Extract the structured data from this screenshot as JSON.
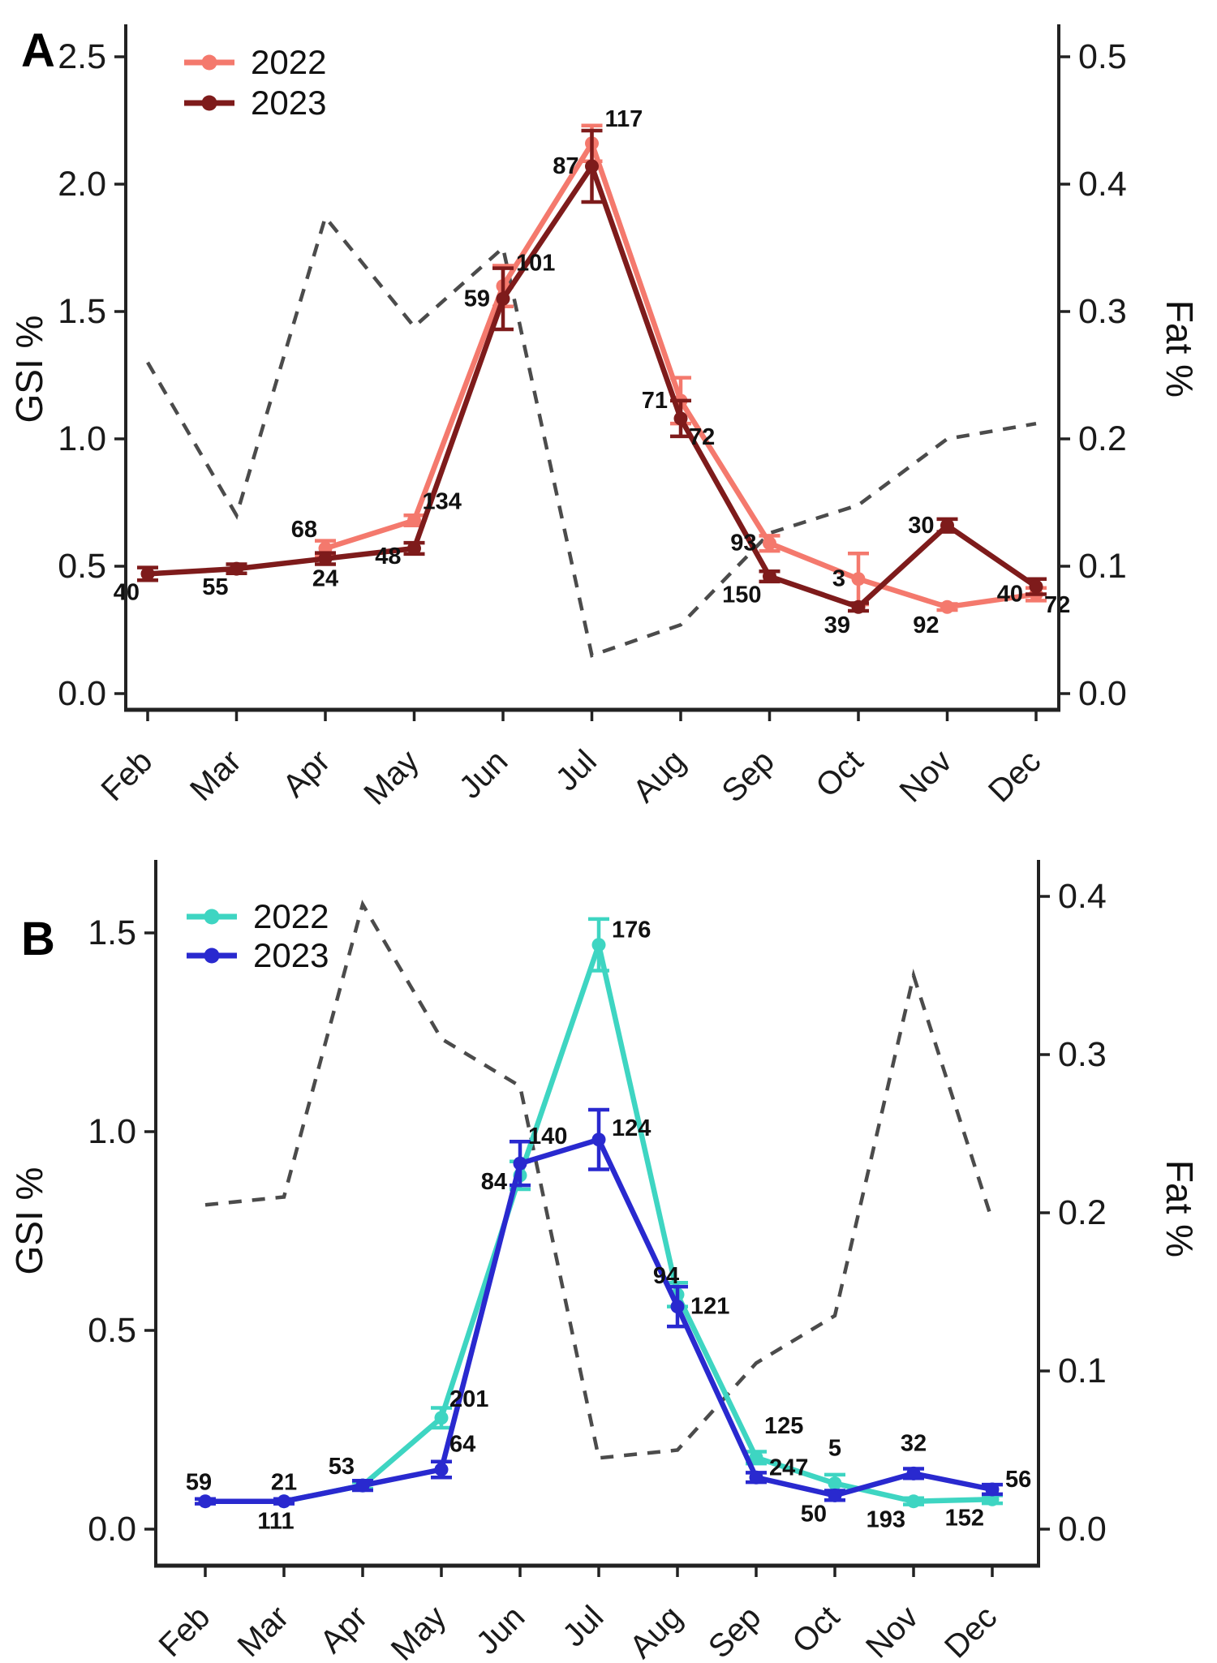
{
  "figure": {
    "background": "#ffffff",
    "text_color": "#000000",
    "axis_color": "#222222"
  },
  "chart_data": [
    {
      "type": "line",
      "panel_label": "A",
      "months": [
        "Feb",
        "Mar",
        "Apr",
        "May",
        "Jun",
        "Jul",
        "Aug",
        "Sep",
        "Oct",
        "Nov",
        "Dec"
      ],
      "y_left": {
        "label": "GSI %",
        "ticks": [
          "0.0",
          "0.5",
          "1.0",
          "1.5",
          "2.0",
          "2.5"
        ],
        "min": 0,
        "max": 2.5
      },
      "y_right": {
        "label": "Fat %",
        "ticks": [
          "0.0",
          "0.1",
          "0.2",
          "0.3",
          "0.4",
          "0.5"
        ],
        "min": 0,
        "max": 0.5
      },
      "legend": [
        {
          "label": "2022",
          "color": "#F4796D"
        },
        {
          "label": "2023",
          "color": "#7E1B1B"
        }
      ],
      "series": [
        {
          "name": "2022",
          "color": "#F4796D",
          "points": [
            {
              "month": "Apr",
              "gsi": 0.57,
              "err": 0.03,
              "n": "68",
              "pos": "above-left"
            },
            {
              "month": "May",
              "gsi": 0.68,
              "err": 0.02,
              "n": "134",
              "pos": "above-right"
            },
            {
              "month": "Jun",
              "gsi": 1.6,
              "err": 0.08,
              "n": "101",
              "pos": "right",
              "dy": -28
            },
            {
              "month": "Jul",
              "gsi": 2.16,
              "err": 0.07,
              "n": "117",
              "pos": "right",
              "dy": -30
            },
            {
              "month": "Aug",
              "gsi": 1.15,
              "err": 0.09,
              "n": "71",
              "pos": "left"
            },
            {
              "month": "Sep",
              "gsi": 0.59,
              "err": 0.03,
              "n": "93",
              "pos": "left"
            },
            {
              "month": "Oct",
              "gsi": 0.45,
              "err": 0.1,
              "n": "3",
              "pos": "left"
            },
            {
              "month": "Nov",
              "gsi": 0.34,
              "err": 0.012,
              "n": "92",
              "pos": "below-left"
            },
            {
              "month": "Dec",
              "gsi": 0.39,
              "err": 0.025,
              "n": "40",
              "pos": "left"
            }
          ]
        },
        {
          "name": "2023",
          "color": "#7E1B1B",
          "points": [
            {
              "month": "Feb",
              "gsi": 0.47,
              "err": 0.025,
              "n": "40",
              "pos": "below-left"
            },
            {
              "month": "Mar",
              "gsi": 0.49,
              "err": 0.018,
              "n": "55",
              "pos": "below-left"
            },
            {
              "month": "Apr",
              "gsi": 0.53,
              "err": 0.022,
              "n": "24",
              "pos": "below"
            },
            {
              "month": "May",
              "gsi": 0.57,
              "err": 0.022,
              "n": "48",
              "pos": "left",
              "dy": 10
            },
            {
              "month": "Jun",
              "gsi": 1.55,
              "err": 0.12,
              "n": "59",
              "pos": "left"
            },
            {
              "month": "Jul",
              "gsi": 2.07,
              "err": 0.14,
              "n": "87",
              "pos": "left"
            },
            {
              "month": "Aug",
              "gsi": 1.08,
              "err": 0.07,
              "n": "72",
              "pos": "below-right"
            },
            {
              "month": "Sep",
              "gsi": 0.46,
              "err": 0.02,
              "n": "150",
              "pos": "below-left"
            },
            {
              "month": "Oct",
              "gsi": 0.34,
              "err": 0.015,
              "n": "39",
              "pos": "below-left"
            },
            {
              "month": "Nov",
              "gsi": 0.66,
              "err": 0.025,
              "n": "30",
              "pos": "left"
            },
            {
              "month": "Dec",
              "gsi": 0.42,
              "err": 0.03,
              "n": "72",
              "pos": "below-right"
            }
          ]
        }
      ],
      "fat_series": {
        "name": "Fat %",
        "style": "dashed",
        "color": "#4B4B4B",
        "values": [
          0.26,
          0.14,
          0.374,
          0.288,
          0.35,
          0.03,
          0.054,
          0.126,
          0.148,
          0.2,
          0.212
        ]
      }
    },
    {
      "type": "line",
      "panel_label": "B",
      "months": [
        "Feb",
        "Mar",
        "Apr",
        "May",
        "Jun",
        "Jul",
        "Aug",
        "Sep",
        "Oct",
        "Nov",
        "Dec"
      ],
      "y_left": {
        "label": "GSI %",
        "ticks": [
          "0.0",
          "0.5",
          "1.0",
          "1.5"
        ],
        "min": 0,
        "max": 1.5
      },
      "y_right": {
        "label": "Fat %",
        "ticks": [
          "0.0",
          "0.1",
          "0.2",
          "0.3",
          "0.4"
        ],
        "min": 0,
        "max": 0.4
      },
      "legend": [
        {
          "label": "2022",
          "color": "#3ED5C2"
        },
        {
          "label": "2023",
          "color": "#2929CF"
        }
      ],
      "series": [
        {
          "name": "2022",
          "color": "#3ED5C2",
          "points": [
            {
              "month": "Mar",
              "gsi": 0.07,
              "err": 0.005,
              "n": "21",
              "pos": "above"
            },
            {
              "month": "Apr",
              "gsi": 0.11,
              "err": 0.008,
              "n": null
            },
            {
              "month": "May",
              "gsi": 0.28,
              "err": 0.025,
              "n": "201",
              "pos": "above-right"
            },
            {
              "month": "Jun",
              "gsi": 0.89,
              "err": 0.035,
              "n": "84",
              "pos": "left",
              "dy": 8
            },
            {
              "month": "Jul",
              "gsi": 1.47,
              "err": 0.065,
              "n": "176",
              "pos": "right",
              "dy": -18
            },
            {
              "month": "Aug",
              "gsi": 0.59,
              "err": 0.03,
              "n": "94",
              "pos": "above",
              "dx": -14
            },
            {
              "month": "Sep",
              "gsi": 0.18,
              "err": 0.015,
              "n": "125",
              "pos": "above-right",
              "dy": -16
            },
            {
              "month": "Oct",
              "gsi": 0.115,
              "err": 0.022,
              "n": "5",
              "pos": "above",
              "dy": -20
            },
            {
              "month": "Nov",
              "gsi": 0.07,
              "err": 0.008,
              "n": "193",
              "pos": "below-left"
            },
            {
              "month": "Dec",
              "gsi": 0.075,
              "err": 0.01,
              "n": "152",
              "pos": "below-left"
            }
          ]
        },
        {
          "name": "2023",
          "color": "#2929CF",
          "points": [
            {
              "month": "Feb",
              "gsi": 0.07,
              "err": 0.006,
              "n": "59",
              "pos": "above",
              "dx": -8
            },
            {
              "month": "Mar",
              "gsi": 0.07,
              "err": 0.006,
              "n": "111",
              "pos": "below",
              "dx": -10
            },
            {
              "month": "Apr",
              "gsi": 0.11,
              "err": 0.012,
              "n": "53",
              "pos": "above-left"
            },
            {
              "month": "May",
              "gsi": 0.15,
              "err": 0.02,
              "n": "64",
              "pos": "above-right",
              "dy": -8
            },
            {
              "month": "Jun",
              "gsi": 0.92,
              "err": 0.055,
              "n": "140",
              "pos": "above-right",
              "dy": -10
            },
            {
              "month": "Jul",
              "gsi": 0.98,
              "err": 0.075,
              "n": "124",
              "pos": "right",
              "dy": -14
            },
            {
              "month": "Aug",
              "gsi": 0.56,
              "err": 0.05,
              "n": "121",
              "pos": "right"
            },
            {
              "month": "Sep",
              "gsi": 0.13,
              "err": 0.012,
              "n": "247",
              "pos": "right",
              "dy": -12
            },
            {
              "month": "Oct",
              "gsi": 0.085,
              "err": 0.012,
              "n": "50",
              "pos": "below-left"
            },
            {
              "month": "Nov",
              "gsi": 0.14,
              "err": 0.012,
              "n": "32",
              "pos": "above",
              "dy": -14
            },
            {
              "month": "Dec",
              "gsi": 0.1,
              "err": 0.012,
              "n": "56",
              "pos": "right",
              "dy": -12
            }
          ]
        }
      ],
      "fat_series": {
        "name": "Fat %",
        "style": "dashed",
        "color": "#4B4B4B",
        "values": [
          0.205,
          0.21,
          0.395,
          0.31,
          0.28,
          0.045,
          0.05,
          0.105,
          0.135,
          0.35,
          0.195
        ]
      }
    }
  ]
}
